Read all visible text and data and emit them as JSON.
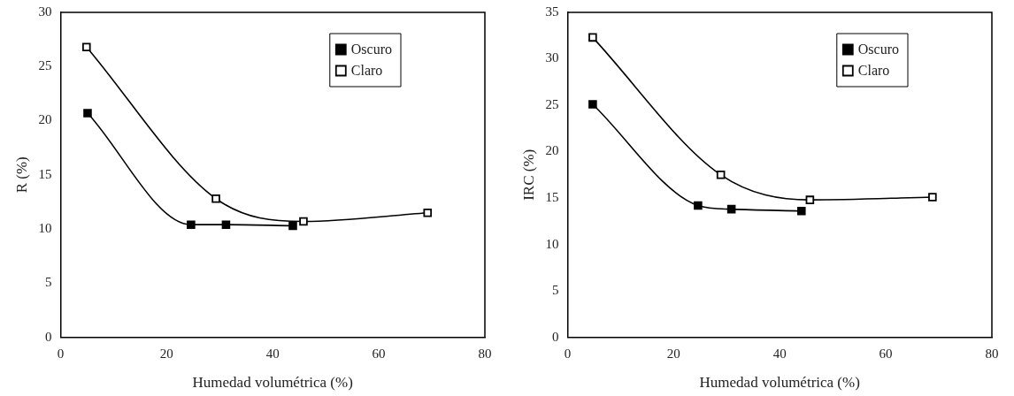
{
  "chart_data": [
    {
      "type": "line",
      "xlabel": "Humedad volumétrica (%)",
      "ylabel": "R (%)",
      "xlim": [
        0,
        80
      ],
      "xticks": [
        0,
        20,
        40,
        60,
        80
      ],
      "ylim": [
        0,
        30
      ],
      "yticks": [
        0,
        5,
        10,
        15,
        20,
        25,
        30
      ],
      "grid": false,
      "legend": "top right",
      "marker": "square",
      "series": [
        {
          "name": "Oscuro",
          "color": "#000000",
          "x": [
            5.1,
            24.6,
            31.2,
            43.8
          ],
          "values": [
            20.7,
            10.4,
            10.4,
            10.3
          ]
        },
        {
          "name": "Claro",
          "color": "#000000",
          "x": [
            4.9,
            29.3,
            45.8,
            69.2
          ],
          "values": [
            26.8,
            12.8,
            10.7,
            11.5
          ]
        }
      ]
    },
    {
      "type": "line",
      "xlabel": "Humedad volumétrica (%)",
      "ylabel": "IRC (%)",
      "xlim": [
        0,
        80
      ],
      "xticks": [
        0,
        20,
        40,
        60,
        80
      ],
      "ylim": [
        0,
        35
      ],
      "yticks": [
        0,
        5,
        10,
        15,
        20,
        25,
        30,
        35
      ],
      "grid": false,
      "legend": "top right",
      "marker": "square",
      "series": [
        {
          "name": "Oscuro",
          "color": "#000000",
          "x": [
            4.75,
            24.6,
            30.9,
            44.1
          ],
          "values": [
            25.1,
            14.2,
            13.8,
            13.6
          ]
        },
        {
          "name": "Claro",
          "color": "#000000",
          "x": [
            4.75,
            28.9,
            45.7,
            68.8
          ],
          "values": [
            32.3,
            17.5,
            14.8,
            15.1
          ]
        }
      ]
    }
  ]
}
